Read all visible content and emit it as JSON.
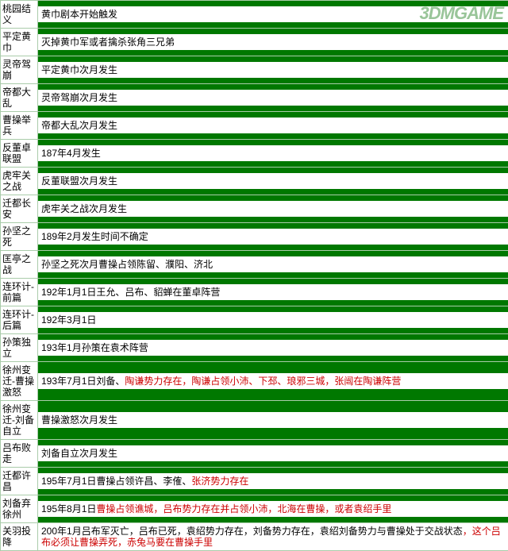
{
  "watermark": "3DMGAME",
  "colors": {
    "page_bg": "#007800",
    "cell_bg": "#ffffff",
    "border": "#aaccaa",
    "text": "#000000",
    "highlight": "#cc0000",
    "watermark": "#8fbf8f"
  },
  "rows": [
    {
      "label": "桃园结义",
      "segments": [
        {
          "t": "黄巾剧本开始触发"
        }
      ]
    },
    {
      "label": "平定黄巾",
      "segments": [
        {
          "t": "灭掉黄巾军或者擒杀张角三兄弟"
        }
      ]
    },
    {
      "label": "灵帝驾崩",
      "segments": [
        {
          "t": "平定黄巾次月发生"
        }
      ]
    },
    {
      "label": "帝都大乱",
      "segments": [
        {
          "t": "灵帝驾崩次月发生"
        }
      ]
    },
    {
      "label": "曹操举兵",
      "segments": [
        {
          "t": "帝都大乱次月发生"
        }
      ]
    },
    {
      "label": "反董卓联盟",
      "segments": [
        {
          "t": "187年4月发生"
        }
      ]
    },
    {
      "label": "虎牢关之战",
      "segments": [
        {
          "t": "反董联盟次月发生"
        }
      ]
    },
    {
      "label": "迁都长安",
      "segments": [
        {
          "t": "虎牢关之战次月发生"
        }
      ]
    },
    {
      "label": "孙坚之死",
      "segments": [
        {
          "t": "189年2月发生时间不确定"
        }
      ]
    },
    {
      "label": "匡亭之战",
      "segments": [
        {
          "t": "孙坚之死次月曹操占领陈留、濮阳、济北"
        }
      ]
    },
    {
      "label": "连环计-前篇",
      "segments": [
        {
          "t": "192年1月1日王允、吕布、貂蝉在董卓阵营"
        }
      ]
    },
    {
      "label": "连环计-后篇",
      "segments": [
        {
          "t": "192年3月1日"
        }
      ]
    },
    {
      "label": "孙策独立",
      "segments": [
        {
          "t": "193年1月孙策在袁术阵营"
        }
      ]
    },
    {
      "label": "徐州变迁-曹操激怒",
      "segments": [
        {
          "t": "193年7月1日刘备、"
        },
        {
          "t": "陶谦势力存在，陶谦占领小沛、下邳、琅邪三城，张闿在陶谦阵营",
          "red": true
        }
      ]
    },
    {
      "label": "徐州变迁-刘备自立",
      "segments": [
        {
          "t": "曹操激怒次月发生"
        }
      ]
    },
    {
      "label": "吕布败走",
      "segments": [
        {
          "t": "刘备自立次月发生"
        }
      ]
    },
    {
      "label": "迁都许昌",
      "segments": [
        {
          "t": "195年7月1日曹操占领许昌、李傕、"
        },
        {
          "t": "张济势力存在",
          "red": true
        }
      ]
    },
    {
      "label": "刘备弃徐州",
      "segments": [
        {
          "t": "195年8月1日"
        },
        {
          "t": "曹操占领谯城，吕布势力存在并占领小沛，北海在曹操，或者袁绍手里",
          "red": true
        }
      ]
    },
    {
      "label": "关羽投降",
      "segments": [
        {
          "t": "200年1月吕布军灭亡，吕布已死，袁绍势力存在，刘备势力存在，袁绍刘备势力与曹操处于交战状态"
        },
        {
          "t": "，这个吕布必须让曹操弄死，赤兔马要在曹操手里",
          "red": true
        }
      ]
    }
  ]
}
